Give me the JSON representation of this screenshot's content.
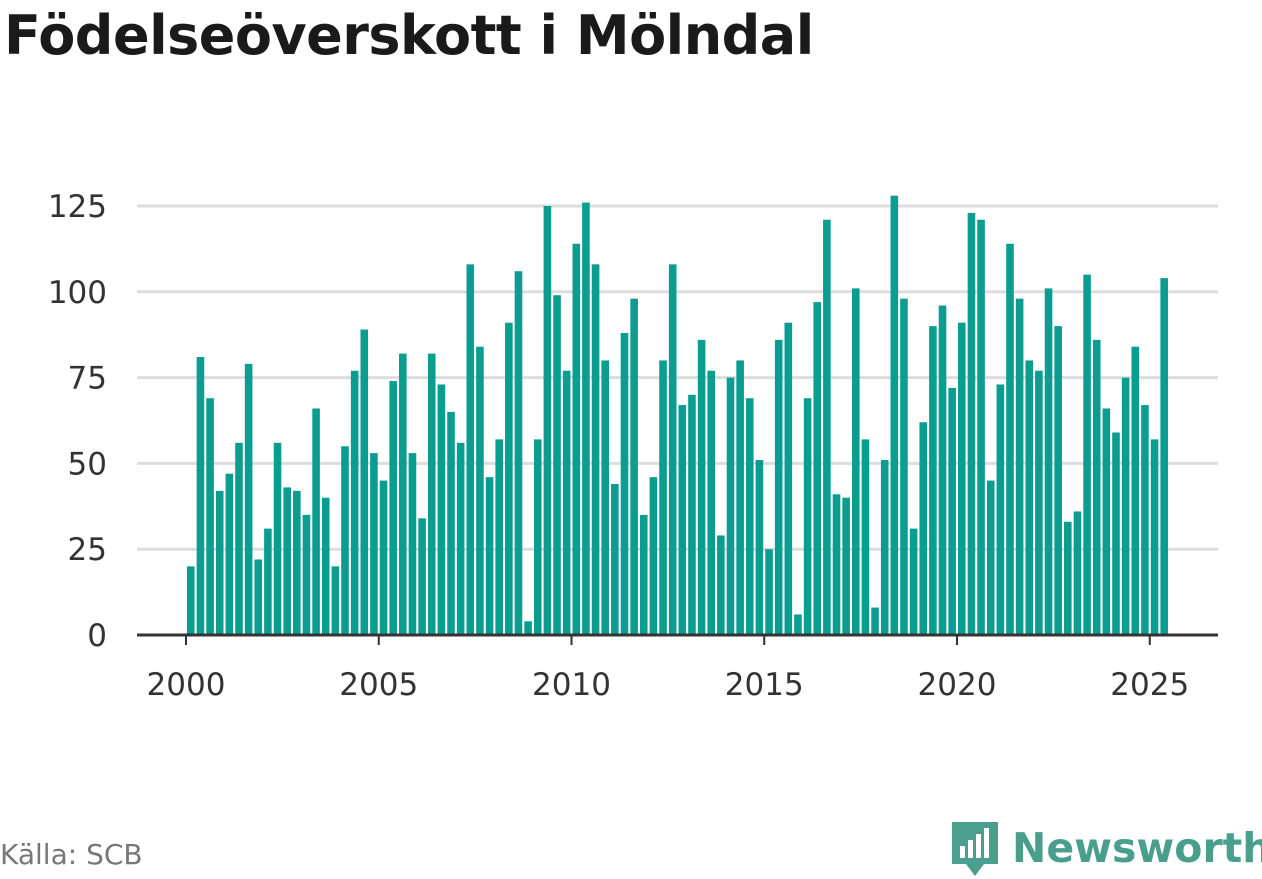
{
  "title": "Födelseöverskott i Mölndal",
  "source": "Källa: SCB",
  "brand": {
    "name": "Newsworthy",
    "logo_icon": "bar-chart-speech-bubble-icon"
  },
  "colors": {
    "bar": "#0c9d91",
    "grid": "#dddddd",
    "axis": "#333333",
    "brand": "#4a9e8e"
  },
  "chart_data": {
    "type": "bar",
    "title": "Födelseöverskott i Mölndal",
    "xlabel": "",
    "ylabel": "",
    "x_ticks": [
      2000,
      2005,
      2010,
      2015,
      2020,
      2025
    ],
    "y_ticks": [
      0,
      25,
      50,
      75,
      100,
      125
    ],
    "ylim": [
      0,
      128
    ],
    "grid": true,
    "legend": "none",
    "start": "2000-01",
    "frequency": "monthly (every 3 months)",
    "values": [
      20,
      81,
      69,
      42,
      47,
      56,
      79,
      22,
      31,
      56,
      43,
      42,
      35,
      66,
      40,
      20,
      55,
      77,
      89,
      53,
      45,
      74,
      82,
      53,
      34,
      82,
      73,
      65,
      56,
      108,
      84,
      46,
      57,
      91,
      106,
      4,
      57,
      125,
      99,
      77,
      114,
      126,
      108,
      80,
      44,
      88,
      98,
      35,
      46,
      80,
      108,
      67,
      70,
      86,
      77,
      29,
      75,
      80,
      69,
      51,
      25,
      86,
      91,
      6,
      69,
      97,
      121,
      41,
      40,
      101,
      57,
      8,
      51,
      128,
      98,
      31,
      62,
      90,
      96,
      72,
      91,
      123,
      121,
      45,
      73,
      114,
      98,
      80,
      77,
      101,
      90,
      33,
      36,
      105,
      86,
      66,
      59,
      75,
      84,
      67,
      57,
      104
    ]
  }
}
